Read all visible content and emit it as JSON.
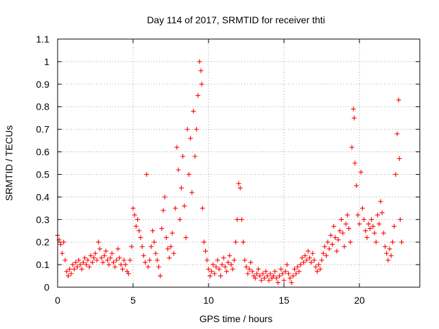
{
  "chart_data": {
    "type": "scatter",
    "title": "Day 114 of 2017, SRMTID for receiver thti",
    "xlabel": "GPS time / hours",
    "ylabel": "SRMTID / TECUs",
    "xlim": [
      0,
      24
    ],
    "ylim": [
      0,
      1.1
    ],
    "x_ticks": [
      0,
      5,
      10,
      15,
      20
    ],
    "x_tick_labels": [
      "0",
      "5",
      "10",
      "15",
      "20"
    ],
    "y_ticks": [
      0,
      0.1,
      0.2,
      0.3,
      0.4,
      0.5,
      0.6,
      0.7,
      0.8,
      0.9,
      1,
      1.1
    ],
    "y_tick_labels": [
      "0",
      "0.1",
      "0.2",
      "0.3",
      "0.4",
      "0.5",
      "0.6",
      "0.7",
      "0.8",
      "0.9",
      "1",
      "1.1"
    ],
    "grid": true,
    "marker": "+",
    "series": [
      {
        "name": "SRMTID thti",
        "color": "#ff0000",
        "points": [
          [
            0.0,
            0.23
          ],
          [
            0.1,
            0.21
          ],
          [
            0.2,
            0.19
          ],
          [
            0.3,
            0.15
          ],
          [
            0.4,
            0.2
          ],
          [
            0.5,
            0.12
          ],
          [
            0.6,
            0.07
          ],
          [
            0.7,
            0.05
          ],
          [
            0.8,
            0.08
          ],
          [
            0.9,
            0.06
          ],
          [
            1.0,
            0.1
          ],
          [
            1.1,
            0.08
          ],
          [
            1.2,
            0.11
          ],
          [
            1.3,
            0.09
          ],
          [
            1.4,
            0.12
          ],
          [
            1.5,
            0.1
          ],
          [
            1.6,
            0.08
          ],
          [
            1.7,
            0.11
          ],
          [
            1.8,
            0.13
          ],
          [
            1.9,
            0.1
          ],
          [
            2.0,
            0.12
          ],
          [
            2.1,
            0.09
          ],
          [
            2.2,
            0.14
          ],
          [
            2.3,
            0.11
          ],
          [
            2.4,
            0.13
          ],
          [
            2.5,
            0.15
          ],
          [
            2.6,
            0.12
          ],
          [
            2.7,
            0.2
          ],
          [
            2.8,
            0.17
          ],
          [
            2.9,
            0.13
          ],
          [
            3.0,
            0.11
          ],
          [
            3.1,
            0.14
          ],
          [
            3.2,
            0.16
          ],
          [
            3.3,
            0.12
          ],
          [
            3.4,
            0.1
          ],
          [
            3.5,
            0.13
          ],
          [
            3.6,
            0.15
          ],
          [
            3.7,
            0.11
          ],
          [
            3.8,
            0.09
          ],
          [
            3.9,
            0.12
          ],
          [
            4.0,
            0.17
          ],
          [
            4.1,
            0.13
          ],
          [
            4.2,
            0.1
          ],
          [
            4.3,
            0.08
          ],
          [
            4.4,
            0.12
          ],
          [
            4.5,
            0.1
          ],
          [
            4.6,
            0.07
          ],
          [
            4.7,
            0.06
          ],
          [
            4.8,
            0.12
          ],
          [
            4.9,
            0.18
          ],
          [
            5.0,
            0.35
          ],
          [
            5.1,
            0.32
          ],
          [
            5.2,
            0.27
          ],
          [
            5.3,
            0.3
          ],
          [
            5.4,
            0.25
          ],
          [
            5.5,
            0.22
          ],
          [
            5.6,
            0.18
          ],
          [
            5.7,
            0.14
          ],
          [
            5.8,
            0.11
          ],
          [
            5.9,
            0.5
          ],
          [
            6.0,
            0.09
          ],
          [
            6.1,
            0.12
          ],
          [
            6.2,
            0.18
          ],
          [
            6.3,
            0.25
          ],
          [
            6.4,
            0.2
          ],
          [
            6.5,
            0.15
          ],
          [
            6.6,
            0.12
          ],
          [
            6.7,
            0.09
          ],
          [
            6.8,
            0.05
          ],
          [
            6.9,
            0.26
          ],
          [
            7.0,
            0.34
          ],
          [
            7.1,
            0.4
          ],
          [
            7.2,
            0.22
          ],
          [
            7.3,
            0.17
          ],
          [
            7.4,
            0.13
          ],
          [
            7.5,
            0.18
          ],
          [
            7.6,
            0.24
          ],
          [
            7.7,
            0.15
          ],
          [
            7.8,
            0.35
          ],
          [
            7.9,
            0.62
          ],
          [
            8.0,
            0.52
          ],
          [
            8.1,
            0.3
          ],
          [
            8.2,
            0.44
          ],
          [
            8.3,
            0.58
          ],
          [
            8.4,
            0.36
          ],
          [
            8.5,
            0.22
          ],
          [
            8.6,
            0.7
          ],
          [
            8.7,
            0.5
          ],
          [
            8.8,
            0.66
          ],
          [
            8.9,
            0.42
          ],
          [
            9.0,
            0.78
          ],
          [
            9.1,
            0.58
          ],
          [
            9.2,
            0.7
          ],
          [
            9.3,
            0.85
          ],
          [
            9.4,
            1.0
          ],
          [
            9.5,
            0.96
          ],
          [
            9.55,
            0.9
          ],
          [
            9.6,
            0.35
          ],
          [
            9.7,
            0.2
          ],
          [
            9.8,
            0.16
          ],
          [
            9.9,
            0.12
          ],
          [
            10.0,
            0.08
          ],
          [
            10.1,
            0.05
          ],
          [
            10.2,
            0.07
          ],
          [
            10.3,
            0.1
          ],
          [
            10.4,
            0.06
          ],
          [
            10.5,
            0.09
          ],
          [
            10.6,
            0.12
          ],
          [
            10.7,
            0.08
          ],
          [
            10.8,
            0.05
          ],
          [
            10.9,
            0.1
          ],
          [
            11.0,
            0.13
          ],
          [
            11.1,
            0.09
          ],
          [
            11.2,
            0.07
          ],
          [
            11.3,
            0.11
          ],
          [
            11.4,
            0.14
          ],
          [
            11.5,
            0.1
          ],
          [
            11.6,
            0.08
          ],
          [
            11.7,
            0.12
          ],
          [
            11.8,
            0.2
          ],
          [
            11.9,
            0.3
          ],
          [
            12.0,
            0.46
          ],
          [
            12.1,
            0.44
          ],
          [
            12.2,
            0.3
          ],
          [
            12.3,
            0.2
          ],
          [
            12.4,
            0.12
          ],
          [
            12.5,
            0.09
          ],
          [
            12.6,
            0.06
          ],
          [
            12.7,
            0.08
          ],
          [
            12.8,
            0.11
          ],
          [
            12.9,
            0.07
          ],
          [
            13.0,
            0.05
          ],
          [
            13.1,
            0.04
          ],
          [
            13.2,
            0.06
          ],
          [
            13.3,
            0.08
          ],
          [
            13.4,
            0.05
          ],
          [
            13.5,
            0.03
          ],
          [
            13.6,
            0.06
          ],
          [
            13.7,
            0.04
          ],
          [
            13.8,
            0.07
          ],
          [
            13.9,
            0.05
          ],
          [
            14.0,
            0.03
          ],
          [
            14.1,
            0.06
          ],
          [
            14.2,
            0.04
          ],
          [
            14.3,
            0.05
          ],
          [
            14.4,
            0.07
          ],
          [
            14.5,
            0.04
          ],
          [
            14.6,
            0.02
          ],
          [
            14.7,
            0.05
          ],
          [
            14.8,
            0.08
          ],
          [
            14.9,
            0.06
          ],
          [
            15.0,
            0.03
          ],
          [
            15.1,
            0.07
          ],
          [
            15.2,
            0.1
          ],
          [
            15.3,
            0.06
          ],
          [
            15.4,
            0.04
          ],
          [
            15.5,
            0.02
          ],
          [
            15.6,
            0.05
          ],
          [
            15.7,
            0.08
          ],
          [
            15.8,
            0.06
          ],
          [
            15.9,
            0.09
          ],
          [
            16.0,
            0.07
          ],
          [
            16.1,
            0.1
          ],
          [
            16.2,
            0.13
          ],
          [
            16.3,
            0.11
          ],
          [
            16.4,
            0.14
          ],
          [
            16.5,
            0.12
          ],
          [
            16.6,
            0.16
          ],
          [
            16.7,
            0.13
          ],
          [
            16.8,
            0.11
          ],
          [
            16.9,
            0.15
          ],
          [
            17.0,
            0.12
          ],
          [
            17.1,
            0.09
          ],
          [
            17.2,
            0.07
          ],
          [
            17.3,
            0.1
          ],
          [
            17.4,
            0.08
          ],
          [
            17.5,
            0.12
          ],
          [
            17.6,
            0.15
          ],
          [
            17.7,
            0.18
          ],
          [
            17.8,
            0.14
          ],
          [
            17.9,
            0.2
          ],
          [
            18.0,
            0.17
          ],
          [
            18.1,
            0.23
          ],
          [
            18.2,
            0.19
          ],
          [
            18.3,
            0.27
          ],
          [
            18.4,
            0.22
          ],
          [
            18.5,
            0.16
          ],
          [
            18.6,
            0.21
          ],
          [
            18.7,
            0.25
          ],
          [
            18.8,
            0.3
          ],
          [
            18.9,
            0.24
          ],
          [
            19.0,
            0.18
          ],
          [
            19.1,
            0.28
          ],
          [
            19.2,
            0.32
          ],
          [
            19.3,
            0.26
          ],
          [
            19.4,
            0.2
          ],
          [
            19.5,
            0.62
          ],
          [
            19.6,
            0.79
          ],
          [
            19.65,
            0.75
          ],
          [
            19.7,
            0.55
          ],
          [
            19.8,
            0.45
          ],
          [
            19.9,
            0.32
          ],
          [
            20.0,
            0.28
          ],
          [
            20.1,
            0.51
          ],
          [
            20.2,
            0.35
          ],
          [
            20.3,
            0.3
          ],
          [
            20.4,
            0.25
          ],
          [
            20.5,
            0.22
          ],
          [
            20.6,
            0.28
          ],
          [
            20.7,
            0.26
          ],
          [
            20.8,
            0.3
          ],
          [
            20.9,
            0.27
          ],
          [
            21.0,
            0.24
          ],
          [
            21.1,
            0.2
          ],
          [
            21.2,
            0.32
          ],
          [
            21.3,
            0.28
          ],
          [
            21.4,
            0.38
          ],
          [
            21.5,
            0.33
          ],
          [
            21.6,
            0.24
          ],
          [
            21.7,
            0.18
          ],
          [
            21.8,
            0.15
          ],
          [
            21.9,
            0.12
          ],
          [
            22.0,
            0.17
          ],
          [
            22.1,
            0.14
          ],
          [
            22.2,
            0.2
          ],
          [
            22.3,
            0.27
          ],
          [
            22.4,
            0.5
          ],
          [
            22.5,
            0.68
          ],
          [
            22.6,
            0.83
          ],
          [
            22.65,
            0.57
          ],
          [
            22.7,
            0.3
          ],
          [
            22.8,
            0.2
          ]
        ]
      }
    ]
  }
}
